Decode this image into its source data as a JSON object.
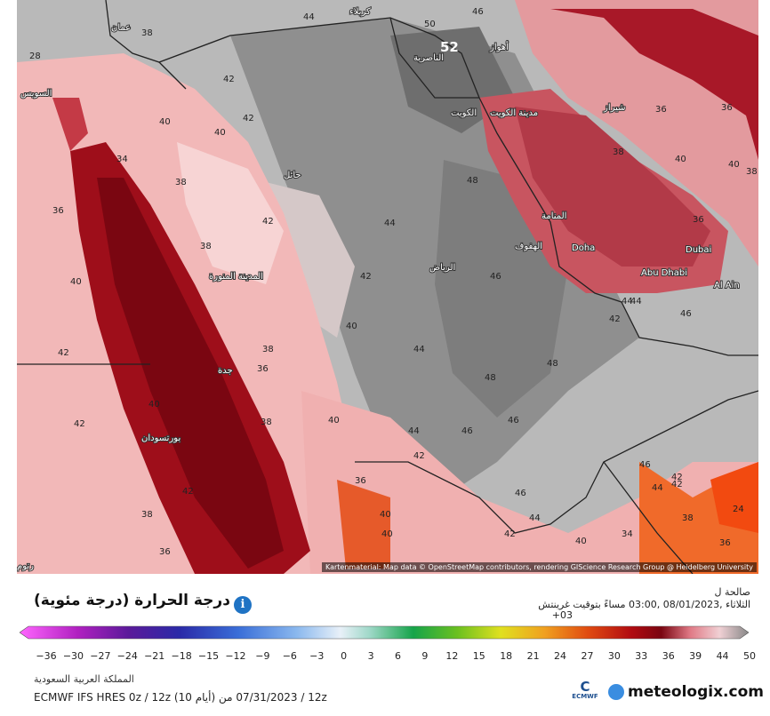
{
  "map": {
    "credit": "Kartenmaterial: Map data © OpenStreetMap contributors, rendering GIScience Research Group @ Heidelberg University",
    "big_value": "52",
    "values": [
      "44",
      "50",
      "46",
      "38",
      "28",
      "42",
      "40",
      "42",
      "40",
      "38",
      "36",
      "34",
      "38",
      "42",
      "40",
      "38",
      "42",
      "40",
      "44",
      "48",
      "46",
      "48",
      "46",
      "44",
      "42",
      "40",
      "36",
      "38",
      "36",
      "40",
      "42",
      "38",
      "42",
      "36",
      "40",
      "42",
      "44",
      "46",
      "48",
      "46",
      "44",
      "42",
      "40",
      "42",
      "44",
      "46",
      "44",
      "42",
      "24",
      "36",
      "38",
      "40",
      "36",
      "34",
      "40",
      "38",
      "36",
      "42",
      "40",
      "36",
      "38",
      "46",
      "44"
    ],
    "cities": [
      "عمان",
      "ﺍﻟﺴﻮﻳﺲ",
      "حائل",
      "المدينة المنورة",
      "الرياض",
      "جدة",
      "بورتسودان",
      "ﺍﻟﻨﺎﺻﺮﻳﺔ",
      "الكويت",
      "مدينة الكويت",
      "المنامة",
      "الهفوف",
      "Doha",
      "Abu Dhabi",
      "Dubai",
      "Al Ain",
      "شيراز",
      "أهواز",
      "كربلاء",
      "رتوم"
    ]
  },
  "legend": {
    "title": "درجة الحرارة (درجة مئوية)",
    "valid_label": "صالحة ل",
    "valid_time": "الثلاثاء ,08/01/2023 ,03:00 مساءً بتوقيت غرينتش",
    "valid_tz": "+03",
    "ticks": [
      "−36",
      "−30",
      "−27",
      "−24",
      "−21",
      "−18",
      "−15",
      "−12",
      "−9",
      "−6",
      "−3",
      "0",
      "3",
      "6",
      "9",
      "12",
      "15",
      "18",
      "21",
      "24",
      "27",
      "30",
      "33",
      "36",
      "39",
      "44",
      "50"
    ],
    "region": "المملكة العربية السعودية",
    "model": "ECMWF IFS HRES 0z / 12z (10 أيام) 12 / 07/31/2023 منz"
  },
  "logo": {
    "ecmwf": "ECMWF",
    "ecmwf_c": "C",
    "brand": "meteologix.com"
  }
}
